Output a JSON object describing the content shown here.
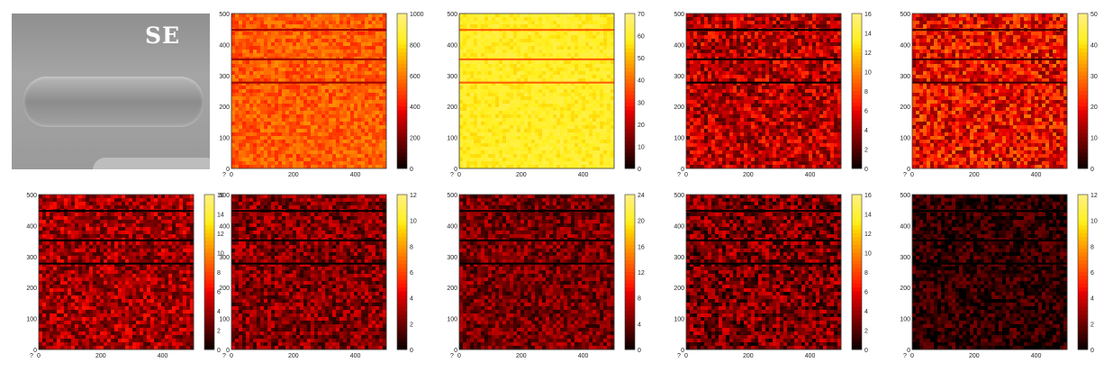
{
  "se_panel": {
    "label": "SE"
  },
  "maps": [
    {
      "id": "m1",
      "row": 0,
      "col": 1,
      "colorbar_ticks": [
        "1000",
        "800",
        "600",
        "400",
        "200",
        "0"
      ],
      "cmax": 1000,
      "palette": "hot",
      "base": 0.55,
      "noise": 0.1
    },
    {
      "id": "m2",
      "row": 0,
      "col": 2,
      "colorbar_ticks": [
        "70",
        "60",
        "50",
        "40",
        "30",
        "20",
        "10",
        "0"
      ],
      "cmax": 70,
      "palette": "hot",
      "base": 0.85,
      "noise": 0.06
    },
    {
      "id": "m3",
      "row": 0,
      "col": 3,
      "colorbar_ticks": [
        "16",
        "14",
        "12",
        "10",
        "8",
        "6",
        "4",
        "2",
        "0"
      ],
      "cmax": 16,
      "palette": "hot",
      "base": 0.3,
      "noise": 0.18
    },
    {
      "id": "m4",
      "row": 0,
      "col": 4,
      "colorbar_ticks": [
        "50",
        "40",
        "30",
        "20",
        "10",
        "0"
      ],
      "cmax": 50,
      "palette": "hot",
      "base": 0.4,
      "noise": 0.2
    },
    {
      "id": "m5",
      "row": 1,
      "col": 0,
      "colorbar_ticks": [
        "16",
        "14",
        "12",
        "10",
        "8",
        "6",
        "4",
        "2",
        "0"
      ],
      "cmax": 16,
      "palette": "hot",
      "base": 0.26,
      "noise": 0.16
    },
    {
      "id": "m6",
      "row": 1,
      "col": 1,
      "colorbar_ticks": [
        "12",
        "10",
        "8",
        "6",
        "4",
        "2",
        "0"
      ],
      "cmax": 12,
      "palette": "hot",
      "base": 0.22,
      "noise": 0.16
    },
    {
      "id": "m7",
      "row": 1,
      "col": 2,
      "colorbar_ticks": [
        "24",
        "20",
        "16",
        "12",
        "8",
        "4",
        "0"
      ],
      "cmax": 24,
      "palette": "hot",
      "base": 0.2,
      "noise": 0.14
    },
    {
      "id": "m8",
      "row": 1,
      "col": 3,
      "colorbar_ticks": [
        "16",
        "14",
        "12",
        "10",
        "8",
        "6",
        "4",
        "2",
        "0"
      ],
      "cmax": 16,
      "palette": "hot",
      "base": 0.2,
      "noise": 0.18
    },
    {
      "id": "m9",
      "row": 1,
      "col": 4,
      "colorbar_ticks": [
        "12",
        "10",
        "8",
        "6",
        "4",
        "2",
        "0"
      ],
      "cmax": 12,
      "palette": "hot",
      "base": 0.08,
      "noise": 0.12
    }
  ],
  "y_axis_ticks": [
    "500",
    "400",
    "300",
    "200",
    "100",
    "0"
  ],
  "x_axis_ticks": [
    "0",
    "200",
    "400"
  ],
  "corner_label": "?"
}
